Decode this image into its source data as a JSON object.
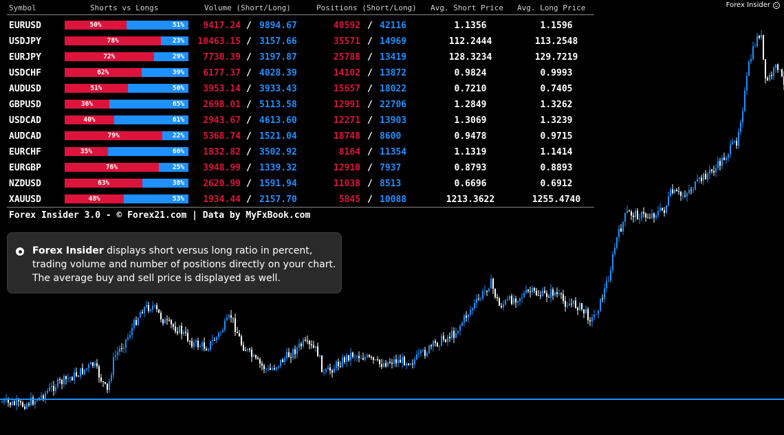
{
  "indicator": {
    "title": "Forex Insider",
    "icon": "smiley-icon"
  },
  "table": {
    "headers": {
      "symbol": "Symbol",
      "ratio": "Shorts vs Longs",
      "volume": "Volume (Short/Long)",
      "positions": "Positions (Short/Long)",
      "avg_short": "Avg. Short Price",
      "avg_long": "Avg. Long Price"
    },
    "rows": [
      {
        "symbol": "EURUSD",
        "short_pct": "50%",
        "long_pct": "51%",
        "vol_short": "9417.24",
        "vol_long": "9894.67",
        "pos_short": "40592",
        "pos_long": "42116",
        "avg_short": "1.1356",
        "avg_long": "1.1596"
      },
      {
        "symbol": "USDJPY",
        "short_pct": "78%",
        "long_pct": "23%",
        "vol_short": "10463.15",
        "vol_long": "3157.66",
        "pos_short": "35571",
        "pos_long": "14969",
        "avg_short": "112.2444",
        "avg_long": "113.2548"
      },
      {
        "symbol": "EURJPY",
        "short_pct": "72%",
        "long_pct": "29%",
        "vol_short": "7730.39",
        "vol_long": "3197.87",
        "pos_short": "25788",
        "pos_long": "13419",
        "avg_short": "128.3234",
        "avg_long": "129.7219"
      },
      {
        "symbol": "USDCHF",
        "short_pct": "62%",
        "long_pct": "39%",
        "vol_short": "6177.37",
        "vol_long": "4028.39",
        "pos_short": "14102",
        "pos_long": "13872",
        "avg_short": "0.9824",
        "avg_long": "0.9993"
      },
      {
        "symbol": "AUDUSD",
        "short_pct": "51%",
        "long_pct": "50%",
        "vol_short": "3953.14",
        "vol_long": "3933.43",
        "pos_short": "15657",
        "pos_long": "18022",
        "avg_short": "0.7210",
        "avg_long": "0.7405"
      },
      {
        "symbol": "GBPUSD",
        "short_pct": "36%",
        "long_pct": "65%",
        "vol_short": "2698.01",
        "vol_long": "5113.58",
        "pos_short": "12991",
        "pos_long": "22706",
        "avg_short": "1.2849",
        "avg_long": "1.3262"
      },
      {
        "symbol": "USDCAD",
        "short_pct": "40%",
        "long_pct": "61%",
        "vol_short": "2943.67",
        "vol_long": "4613.60",
        "pos_short": "12271",
        "pos_long": "13903",
        "avg_short": "1.3069",
        "avg_long": "1.3239"
      },
      {
        "symbol": "AUDCAD",
        "short_pct": "79%",
        "long_pct": "22%",
        "vol_short": "5368.74",
        "vol_long": "1521.04",
        "pos_short": "18748",
        "pos_long": "8600",
        "avg_short": "0.9478",
        "avg_long": "0.9715"
      },
      {
        "symbol": "EURCHF",
        "short_pct": "35%",
        "long_pct": "66%",
        "vol_short": "1832.82",
        "vol_long": "3502.92",
        "pos_short": "8164",
        "pos_long": "11354",
        "avg_short": "1.1319",
        "avg_long": "1.1414"
      },
      {
        "symbol": "EURGBP",
        "short_pct": "76%",
        "long_pct": "25%",
        "vol_short": "3948.99",
        "vol_long": "1339.32",
        "pos_short": "12910",
        "pos_long": "7937",
        "avg_short": "0.8793",
        "avg_long": "0.8893"
      },
      {
        "symbol": "NZDUSD",
        "short_pct": "63%",
        "long_pct": "38%",
        "vol_short": "2620.99",
        "vol_long": "1591.94",
        "pos_short": "11038",
        "pos_long": "8513",
        "avg_short": "0.6696",
        "avg_long": "0.6912"
      },
      {
        "symbol": "XAUUSD",
        "short_pct": "48%",
        "long_pct": "53%",
        "vol_short": "1934.44",
        "vol_long": "2157.70",
        "pos_short": "5845",
        "pos_long": "10088",
        "avg_short": "1213.3622",
        "avg_long": "1255.4740"
      }
    ],
    "separator": "/",
    "footer": "Forex Insider 3.0 - © Forex21.com | Data by MyFxBook.com"
  },
  "info": {
    "icon": "info-circle-icon",
    "title": "Forex Insider",
    "text": " displays short versus long ratio in percent, trading volume and number of positions directly on your chart. The average buy and sell price is displayed as well."
  },
  "colors": {
    "short": "#dc143c",
    "long": "#1e90ff",
    "candle": "#ffffff",
    "candle_up": "#1e90ff",
    "price_line": "#1e90ff",
    "background": "#000000"
  }
}
